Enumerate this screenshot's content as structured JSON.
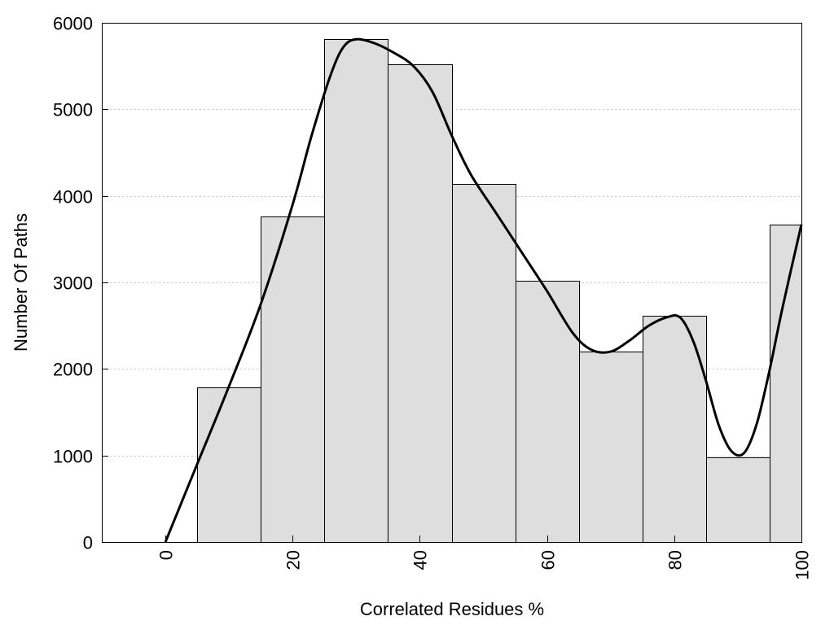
{
  "chart_data": {
    "type": "bar",
    "title": "",
    "xlabel": "Correlated Residues %",
    "ylabel": "Number Of Paths",
    "xlim": [
      -10,
      100
    ],
    "ylim": [
      0,
      6000
    ],
    "grid": true,
    "bar_width": 10,
    "bars": [
      {
        "x": 10,
        "value": 1790
      },
      {
        "x": 20,
        "value": 3760
      },
      {
        "x": 30,
        "value": 5810
      },
      {
        "x": 40,
        "value": 5520
      },
      {
        "x": 50,
        "value": 4140
      },
      {
        "x": 60,
        "value": 3020
      },
      {
        "x": 70,
        "value": 2200
      },
      {
        "x": 80,
        "value": 2610
      },
      {
        "x": 90,
        "value": 980
      },
      {
        "x": 100,
        "value": 3670
      }
    ],
    "x_ticks": [
      0,
      20,
      40,
      60,
      80,
      100
    ],
    "y_ticks": [
      0,
      1000,
      2000,
      3000,
      4000,
      5000,
      6000
    ],
    "curve": {
      "type": "smooth-line",
      "x": [
        0,
        5,
        10,
        15,
        20,
        23,
        26,
        28,
        30,
        33,
        36,
        39,
        42,
        45,
        48,
        52,
        56,
        60,
        64,
        67,
        70,
        73,
        76,
        79,
        81,
        83,
        85,
        87,
        89,
        91,
        93,
        95,
        97,
        100
      ],
      "y": [
        0,
        900,
        1800,
        2750,
        3900,
        4700,
        5400,
        5720,
        5810,
        5760,
        5650,
        5500,
        5200,
        4700,
        4250,
        3800,
        3350,
        2900,
        2420,
        2220,
        2200,
        2330,
        2500,
        2600,
        2590,
        2320,
        1860,
        1350,
        1050,
        1030,
        1370,
        1990,
        2700,
        3670
      ]
    },
    "colors": {
      "bar_fill": "#dedede",
      "bar_stroke": "#000000",
      "curve": "#000000",
      "grid": "#c8c8c8"
    }
  }
}
